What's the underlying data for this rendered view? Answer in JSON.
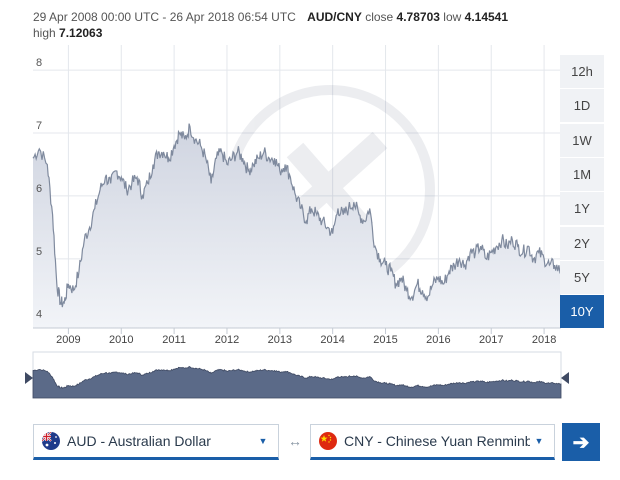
{
  "header": {
    "date_range": "29 Apr 2008 00:00 UTC - 26 Apr 2018 06:54 UTC",
    "pair": "AUD/CNY",
    "close_label": "close",
    "close_value": "4.78703",
    "low_label": "low",
    "low_value": "4.14541",
    "high_label": "high",
    "high_value": "7.12063"
  },
  "range_buttons": [
    {
      "label": "12h",
      "active": false
    },
    {
      "label": "1D",
      "active": false
    },
    {
      "label": "1W",
      "active": false
    },
    {
      "label": "1M",
      "active": false
    },
    {
      "label": "1Y",
      "active": false
    },
    {
      "label": "2Y",
      "active": false
    },
    {
      "label": "5Y",
      "active": false
    },
    {
      "label": "10Y",
      "active": true
    }
  ],
  "chart_data": {
    "type": "area",
    "title": "",
    "xlabel": "",
    "ylabel": "",
    "x_ticks": [
      "2009",
      "2010",
      "2011",
      "2012",
      "2013",
      "2014",
      "2015",
      "2016",
      "2017",
      "2018"
    ],
    "y_ticks": [
      "4",
      "5",
      "6",
      "7",
      "8"
    ],
    "xlim": [
      2008.33,
      2018.32
    ],
    "ylim": [
      3.9,
      8.4
    ],
    "grid": true,
    "series": [
      {
        "x": [
          2008.33,
          2008.45,
          2008.6,
          2008.7,
          2008.78,
          2008.85,
          2008.92,
          2009.0,
          2009.1,
          2009.2,
          2009.3,
          2009.4,
          2009.5,
          2009.6,
          2009.7,
          2009.8,
          2009.9,
          2010.0,
          2010.1,
          2010.2,
          2010.3,
          2010.4,
          2010.5,
          2010.6,
          2010.7,
          2010.8,
          2010.9,
          2011.0,
          2011.1,
          2011.2,
          2011.3,
          2011.4,
          2011.5,
          2011.6,
          2011.7,
          2011.8,
          2011.9,
          2012.0,
          2012.1,
          2012.2,
          2012.3,
          2012.4,
          2012.5,
          2012.6,
          2012.7,
          2012.8,
          2012.9,
          2013.0,
          2013.1,
          2013.2,
          2013.3,
          2013.4,
          2013.5,
          2013.6,
          2013.7,
          2013.8,
          2013.9,
          2014.0,
          2014.1,
          2014.2,
          2014.3,
          2014.4,
          2014.5,
          2014.6,
          2014.7,
          2014.8,
          2014.9,
          2015.0,
          2015.1,
          2015.2,
          2015.3,
          2015.4,
          2015.5,
          2015.6,
          2015.7,
          2015.8,
          2015.9,
          2016.0,
          2016.1,
          2016.2,
          2016.3,
          2016.4,
          2016.5,
          2016.6,
          2016.7,
          2016.8,
          2016.9,
          2017.0,
          2017.1,
          2017.2,
          2017.3,
          2017.4,
          2017.5,
          2017.6,
          2017.7,
          2017.8,
          2017.9,
          2018.0,
          2018.1,
          2018.2,
          2018.32
        ],
        "values": [
          6.6,
          6.75,
          6.5,
          5.7,
          4.6,
          4.3,
          4.3,
          4.6,
          4.5,
          4.8,
          5.3,
          5.5,
          5.8,
          6.1,
          6.3,
          6.2,
          6.4,
          6.3,
          6.1,
          6.2,
          6.3,
          6.0,
          6.2,
          6.5,
          6.7,
          6.7,
          6.6,
          6.8,
          7.0,
          6.9,
          7.1,
          6.9,
          6.8,
          6.6,
          6.2,
          6.6,
          6.7,
          6.5,
          6.6,
          6.7,
          6.6,
          6.4,
          6.5,
          6.6,
          6.7,
          6.6,
          6.6,
          6.4,
          6.5,
          6.3,
          6.0,
          5.8,
          5.6,
          5.8,
          5.7,
          5.6,
          5.5,
          5.4,
          5.8,
          5.7,
          5.8,
          5.9,
          5.7,
          5.6,
          5.8,
          5.2,
          5.0,
          4.9,
          4.8,
          4.6,
          4.7,
          4.5,
          4.4,
          4.6,
          4.5,
          4.4,
          4.6,
          4.7,
          4.6,
          4.8,
          4.9,
          5.0,
          4.9,
          5.1,
          5.1,
          5.2,
          5.0,
          5.1,
          5.2,
          5.3,
          5.2,
          5.3,
          5.2,
          5.1,
          5.2,
          5.0,
          5.1,
          5.0,
          4.9,
          4.9,
          4.8
        ]
      }
    ]
  },
  "from_currency": {
    "label": "AUD - Australian Dollar",
    "flag": "au-flag-icon"
  },
  "to_currency": {
    "label": "CNY - Chinese Yuan Renminbi",
    "flag": "cn-flag-icon"
  },
  "colors": {
    "accent": "#1a5ea8",
    "area_fill": "#dfe3ec",
    "line": "#7f8a9e",
    "navigator_fill": "#5b6a88"
  }
}
